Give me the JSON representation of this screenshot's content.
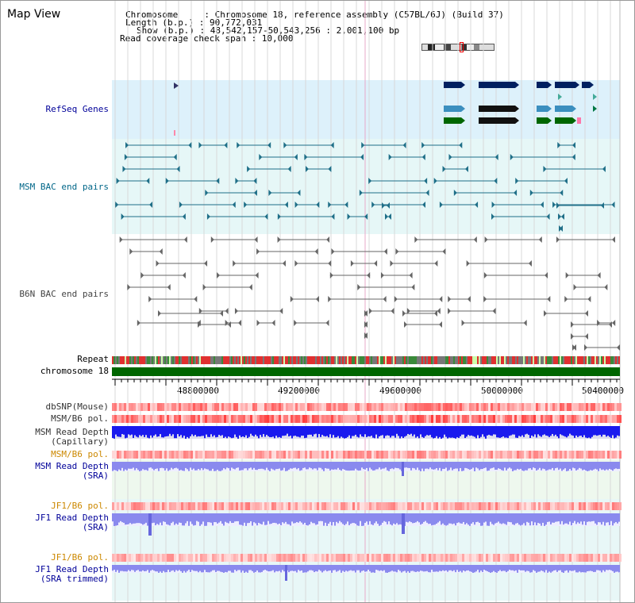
{
  "title": "Map View",
  "info": {
    "chromosome": "Chromosome     : Chromosome 18, reference assembly (C57BL/6J) (Build 37)",
    "length": "Length (b.p.) : 90,772,031",
    "show": "Show (b.p.) : 48,542,157-50,543,256 : 2,001,100 bp",
    "coverage": "Read coverage check span : 10,000"
  },
  "tracks": {
    "refseq": "RefSeq Genes",
    "msm_bac": "MSM BAC end pairs",
    "b6n_bac": "B6N BAC end pairs",
    "repeat": "Repeat",
    "chromosome": "chromosome 18",
    "dbsnp": "dbSNP(Mouse)",
    "msm_b6_pol": "MSM/B6 pol.",
    "msm_depth_cap_1": "MSM Read Depth",
    "msm_depth_cap_2": "(Capillary)",
    "msm_b6_pol2": "MSM/B6 pol.",
    "msm_depth_sra_1": "MSM Read Depth",
    "msm_depth_sra_2": "(SRA)",
    "jf1_b6_pol": "JF1/B6 pol.",
    "jf1_depth_sra_1": "JF1 Read Depth",
    "jf1_depth_sra_2": "(SRA)",
    "jf1_b6_pol2": "JF1/B6 pol.",
    "jf1_depth_trim_1": "JF1 Read Depth",
    "jf1_depth_trim_2": "(SRA trimmed)"
  },
  "axis_ticks": [
    "48800000",
    "49200000",
    "49600000",
    "50000000",
    "50400000"
  ],
  "colors": {
    "refseq_label": "#000099",
    "msm_label": "#006688",
    "b6n_label": "#444444",
    "orange_label": "#cc8800",
    "blue_label": "#000099",
    "refseq_bg": "#ddf1fb",
    "msm_bg": "#e6f7f7",
    "depth_blue": "#1a1aee",
    "depth_light": "#8a8aee",
    "chromosome": "#006600"
  }
}
